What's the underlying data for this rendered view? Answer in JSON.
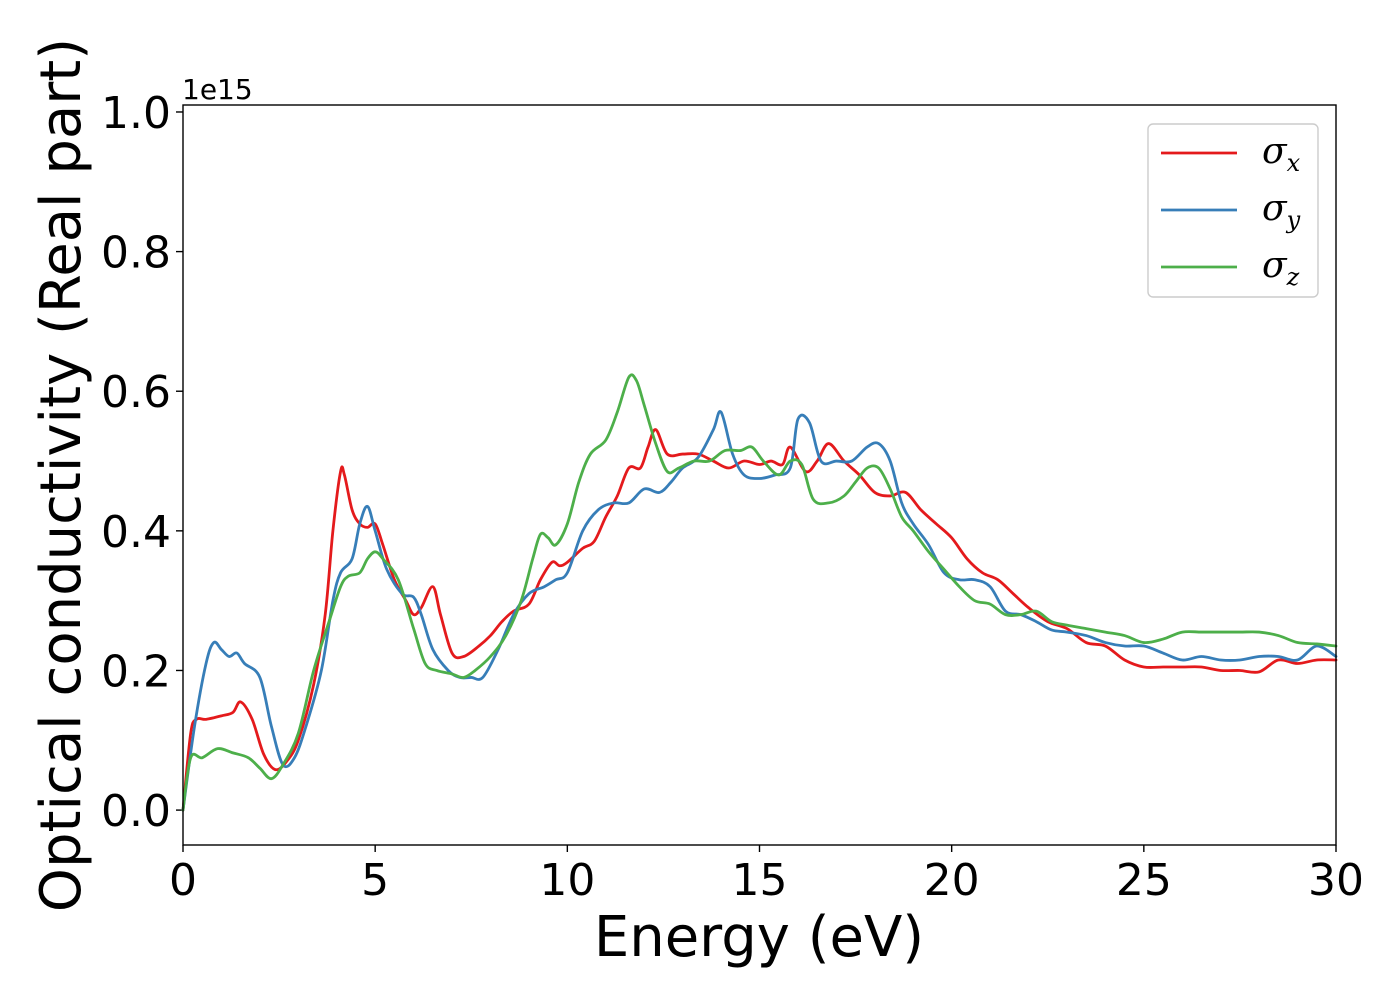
{
  "chart_data": {
    "type": "line",
    "xlabel": "Energy (eV)",
    "ylabel": "Optical conductivity (Real part)",
    "y_offset_label": "1e15",
    "xlim": [
      0,
      30
    ],
    "ylim": [
      -0.05,
      1.01
    ],
    "xticks": [
      0,
      5,
      10,
      15,
      20,
      25,
      30
    ],
    "xtick_labels": [
      "0",
      "5",
      "10",
      "15",
      "20",
      "25",
      "30"
    ],
    "yticks": [
      0.0,
      0.2,
      0.4,
      0.6,
      0.8,
      1.0
    ],
    "ytick_labels": [
      "0.0",
      "0.2",
      "0.4",
      "0.6",
      "0.8",
      "1.0"
    ],
    "grid": false,
    "legend_position": "upper-right",
    "series": [
      {
        "name": "σ",
        "subscript": "x",
        "color": "#e41a1c",
        "x": [
          0,
          0.2,
          0.35,
          0.6,
          1.0,
          1.3,
          1.5,
          1.8,
          2.1,
          2.4,
          2.7,
          3.0,
          3.4,
          3.7,
          3.9,
          4.1,
          4.2,
          4.4,
          4.6,
          4.8,
          5.0,
          5.2,
          5.5,
          5.8,
          6.0,
          6.2,
          6.5,
          6.7,
          7.0,
          7.3,
          7.7,
          8.0,
          8.3,
          8.6,
          9.0,
          9.3,
          9.6,
          9.8,
          10.0,
          10.4,
          10.7,
          11.0,
          11.3,
          11.6,
          11.9,
          12.1,
          12.3,
          12.6,
          13.0,
          13.4,
          13.8,
          14.2,
          14.6,
          15.0,
          15.3,
          15.6,
          15.8,
          16.2,
          16.5,
          16.8,
          17.2,
          17.6,
          18.0,
          18.4,
          18.8,
          19.2,
          19.6,
          20.0,
          20.4,
          20.8,
          21.2,
          21.6,
          22.0,
          22.5,
          23.0,
          23.5,
          24.0,
          24.5,
          25.0,
          25.5,
          26.0,
          26.5,
          27.0,
          27.5,
          28.0,
          28.5,
          29.0,
          29.5,
          30.0
        ],
        "y": [
          0.0,
          0.11,
          0.13,
          0.13,
          0.135,
          0.14,
          0.155,
          0.13,
          0.08,
          0.058,
          0.07,
          0.1,
          0.18,
          0.28,
          0.4,
          0.485,
          0.48,
          0.43,
          0.41,
          0.405,
          0.41,
          0.38,
          0.33,
          0.3,
          0.28,
          0.29,
          0.32,
          0.28,
          0.225,
          0.22,
          0.235,
          0.25,
          0.27,
          0.285,
          0.295,
          0.33,
          0.355,
          0.35,
          0.355,
          0.375,
          0.385,
          0.42,
          0.45,
          0.49,
          0.49,
          0.52,
          0.545,
          0.51,
          0.51,
          0.51,
          0.5,
          0.49,
          0.5,
          0.495,
          0.5,
          0.495,
          0.52,
          0.485,
          0.5,
          0.525,
          0.5,
          0.48,
          0.455,
          0.45,
          0.455,
          0.43,
          0.41,
          0.39,
          0.36,
          0.34,
          0.33,
          0.31,
          0.29,
          0.27,
          0.26,
          0.24,
          0.235,
          0.215,
          0.205,
          0.205,
          0.205,
          0.205,
          0.2,
          0.2,
          0.198,
          0.215,
          0.21,
          0.215,
          0.215
        ]
      },
      {
        "name": "σ",
        "subscript": "y",
        "color": "#377eb8",
        "x": [
          0,
          0.3,
          0.6,
          0.8,
          1.0,
          1.2,
          1.4,
          1.6,
          2.0,
          2.3,
          2.6,
          2.9,
          3.2,
          3.6,
          3.9,
          4.1,
          4.4,
          4.6,
          4.8,
          5.0,
          5.3,
          5.7,
          6.0,
          6.2,
          6.5,
          6.9,
          7.2,
          7.5,
          7.8,
          8.2,
          8.6,
          9.0,
          9.4,
          9.7,
          10.0,
          10.4,
          10.8,
          11.2,
          11.6,
          12.0,
          12.4,
          12.7,
          13.0,
          13.4,
          13.8,
          14.0,
          14.3,
          14.6,
          15.0,
          15.4,
          15.8,
          16.0,
          16.3,
          16.6,
          17.0,
          17.4,
          17.8,
          18.1,
          18.4,
          18.7,
          19.0,
          19.4,
          19.8,
          20.2,
          20.6,
          21.0,
          21.4,
          21.8,
          22.2,
          22.6,
          23.0,
          23.5,
          24.0,
          24.5,
          25.0,
          25.5,
          26.0,
          26.5,
          27.0,
          27.5,
          28.0,
          28.5,
          29.0,
          29.5,
          30.0
        ],
        "y": [
          0.0,
          0.12,
          0.21,
          0.24,
          0.23,
          0.22,
          0.225,
          0.21,
          0.19,
          0.12,
          0.065,
          0.075,
          0.12,
          0.2,
          0.3,
          0.34,
          0.36,
          0.41,
          0.435,
          0.4,
          0.345,
          0.31,
          0.305,
          0.28,
          0.23,
          0.2,
          0.19,
          0.19,
          0.19,
          0.23,
          0.28,
          0.31,
          0.32,
          0.33,
          0.34,
          0.4,
          0.43,
          0.44,
          0.44,
          0.46,
          0.455,
          0.47,
          0.49,
          0.505,
          0.545,
          0.57,
          0.51,
          0.48,
          0.475,
          0.48,
          0.49,
          0.56,
          0.555,
          0.5,
          0.5,
          0.5,
          0.52,
          0.525,
          0.5,
          0.44,
          0.41,
          0.38,
          0.34,
          0.33,
          0.33,
          0.32,
          0.285,
          0.28,
          0.27,
          0.258,
          0.255,
          0.25,
          0.24,
          0.235,
          0.235,
          0.225,
          0.215,
          0.22,
          0.215,
          0.215,
          0.22,
          0.22,
          0.215,
          0.235,
          0.22
        ]
      },
      {
        "name": "σ",
        "subscript": "z",
        "color": "#4daf4a",
        "x": [
          0,
          0.2,
          0.5,
          0.9,
          1.3,
          1.7,
          2.0,
          2.3,
          2.6,
          3.0,
          3.4,
          3.8,
          4.1,
          4.3,
          4.6,
          4.8,
          5.0,
          5.2,
          5.6,
          6.0,
          6.3,
          6.6,
          7.0,
          7.3,
          7.6,
          8.0,
          8.4,
          8.8,
          9.1,
          9.3,
          9.5,
          9.7,
          10.0,
          10.3,
          10.6,
          11.0,
          11.3,
          11.6,
          11.8,
          12.0,
          12.3,
          12.6,
          12.9,
          13.3,
          13.7,
          14.1,
          14.5,
          14.8,
          15.1,
          15.5,
          15.8,
          16.1,
          16.4,
          16.8,
          17.2,
          17.5,
          17.8,
          18.1,
          18.4,
          18.7,
          19.0,
          19.4,
          19.8,
          20.2,
          20.6,
          21.0,
          21.4,
          21.8,
          22.2,
          22.6,
          23.0,
          23.5,
          24.0,
          24.5,
          25.0,
          25.5,
          26.0,
          26.5,
          27.0,
          27.5,
          28.0,
          28.5,
          29.0,
          29.5,
          30.0
        ],
        "y": [
          0.0,
          0.075,
          0.075,
          0.088,
          0.082,
          0.075,
          0.06,
          0.045,
          0.065,
          0.11,
          0.2,
          0.27,
          0.32,
          0.335,
          0.34,
          0.36,
          0.37,
          0.36,
          0.33,
          0.26,
          0.21,
          0.2,
          0.195,
          0.19,
          0.2,
          0.22,
          0.25,
          0.3,
          0.36,
          0.395,
          0.39,
          0.38,
          0.41,
          0.47,
          0.51,
          0.53,
          0.57,
          0.62,
          0.615,
          0.58,
          0.525,
          0.485,
          0.49,
          0.5,
          0.5,
          0.515,
          0.515,
          0.52,
          0.5,
          0.48,
          0.5,
          0.495,
          0.445,
          0.44,
          0.45,
          0.47,
          0.49,
          0.49,
          0.46,
          0.42,
          0.4,
          0.37,
          0.345,
          0.32,
          0.3,
          0.295,
          0.28,
          0.28,
          0.285,
          0.27,
          0.265,
          0.26,
          0.255,
          0.25,
          0.24,
          0.245,
          0.255,
          0.255,
          0.255,
          0.255,
          0.255,
          0.25,
          0.24,
          0.238,
          0.235
        ]
      }
    ]
  }
}
